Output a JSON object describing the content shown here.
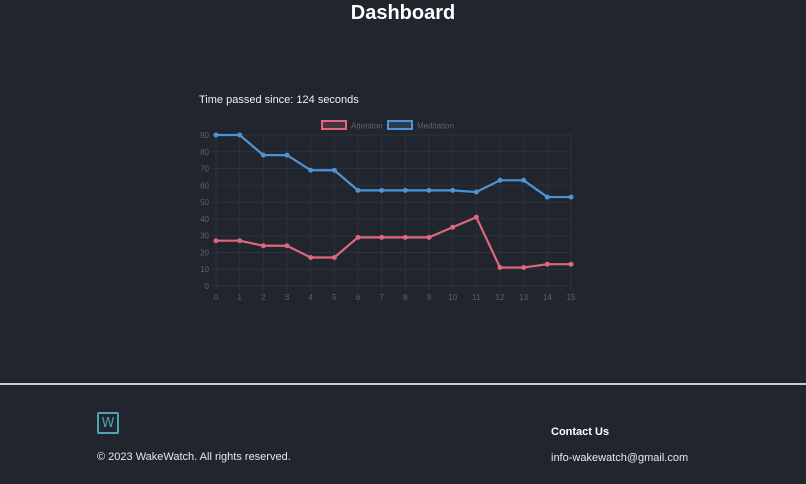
{
  "header": {
    "title": "Dashboard"
  },
  "timer": {
    "label": "Time passed since: 124 seconds"
  },
  "footer": {
    "logo_glyph": "W",
    "copyright": "© 2023 WakeWatch. All rights reserved.",
    "contact_title": "Contact Us",
    "contact_email": "info-wakewatch@gmail.com"
  },
  "colors": {
    "background": "#21252e",
    "attention": "#e0677e",
    "meditation": "#4d93d6",
    "grid": "#2c313b",
    "tick": "#5d636d",
    "logo": "#4fa3b8"
  },
  "chart_data": {
    "type": "line",
    "title": "",
    "xlabel": "",
    "ylabel": "",
    "x": [
      0,
      1,
      2,
      3,
      4,
      5,
      6,
      7,
      8,
      9,
      10,
      11,
      12,
      13,
      14,
      15
    ],
    "ylim": [
      0,
      90
    ],
    "yticks": [
      0,
      10,
      20,
      30,
      40,
      50,
      60,
      70,
      80,
      90
    ],
    "grid": true,
    "legend_position": "top",
    "series": [
      {
        "name": "Attention",
        "color": "#e0677e",
        "values": [
          27,
          27,
          24,
          24,
          17,
          17,
          29,
          29,
          29,
          29,
          35,
          41,
          11,
          11,
          13,
          13
        ]
      },
      {
        "name": "Meditation",
        "color": "#4d93d6",
        "values": [
          90,
          90,
          78,
          78,
          69,
          69,
          57,
          57,
          57,
          57,
          57,
          56,
          63,
          63,
          53,
          53
        ]
      }
    ]
  }
}
